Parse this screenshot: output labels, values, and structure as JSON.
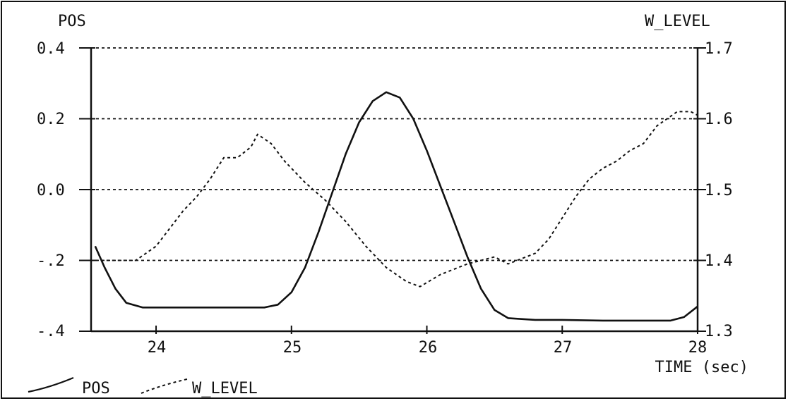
{
  "chart_data": {
    "type": "line",
    "left_axis": {
      "label": "POS",
      "ticks": [
        "0.4",
        "0.2",
        "0.0",
        "-.2",
        "-.4"
      ],
      "ylim": [
        -0.4,
        0.4
      ]
    },
    "right_axis": {
      "label": "W_LEVEL",
      "ticks": [
        "1.7",
        "1.6",
        "1.5",
        "1.4",
        "1.3"
      ],
      "ylim": [
        1.3,
        1.7
      ]
    },
    "x_axis": {
      "label": "TIME (sec)",
      "ticks": [
        "24",
        "25",
        "26",
        "27",
        "28"
      ],
      "xlim": [
        23.52,
        28
      ]
    },
    "grid": "horizontal dashed",
    "legend_position": "bottom-left",
    "series": [
      {
        "name": "POS",
        "axis": "left",
        "style": "solid",
        "points": [
          [
            23.55,
            -0.16
          ],
          [
            23.62,
            -0.22
          ],
          [
            23.7,
            -0.28
          ],
          [
            23.78,
            -0.32
          ],
          [
            23.9,
            -0.333
          ],
          [
            24.2,
            -0.333
          ],
          [
            24.5,
            -0.333
          ],
          [
            24.8,
            -0.333
          ],
          [
            24.9,
            -0.325
          ],
          [
            25.0,
            -0.29
          ],
          [
            25.1,
            -0.22
          ],
          [
            25.2,
            -0.12
          ],
          [
            25.3,
            -0.01
          ],
          [
            25.4,
            0.1
          ],
          [
            25.5,
            0.19
          ],
          [
            25.6,
            0.25
          ],
          [
            25.7,
            0.275
          ],
          [
            25.8,
            0.26
          ],
          [
            25.9,
            0.2
          ],
          [
            26.0,
            0.11
          ],
          [
            26.1,
            0.01
          ],
          [
            26.2,
            -0.09
          ],
          [
            26.3,
            -0.19
          ],
          [
            26.4,
            -0.28
          ],
          [
            26.5,
            -0.34
          ],
          [
            26.6,
            -0.363
          ],
          [
            26.8,
            -0.368
          ],
          [
            27.0,
            -0.368
          ],
          [
            27.3,
            -0.37
          ],
          [
            27.6,
            -0.37
          ],
          [
            27.8,
            -0.37
          ],
          [
            27.9,
            -0.36
          ],
          [
            28.0,
            -0.33
          ]
        ]
      },
      {
        "name": "W_LEVEL",
        "axis": "right",
        "style": "dashed",
        "points": [
          [
            23.55,
            1.4
          ],
          [
            23.7,
            1.4
          ],
          [
            23.85,
            1.4
          ],
          [
            24.0,
            1.42
          ],
          [
            24.1,
            1.445
          ],
          [
            24.2,
            1.47
          ],
          [
            24.3,
            1.49
          ],
          [
            24.4,
            1.515
          ],
          [
            24.5,
            1.545
          ],
          [
            24.6,
            1.545
          ],
          [
            24.7,
            1.56
          ],
          [
            24.75,
            1.578
          ],
          [
            24.85,
            1.565
          ],
          [
            24.95,
            1.54
          ],
          [
            25.1,
            1.51
          ],
          [
            25.25,
            1.485
          ],
          [
            25.4,
            1.455
          ],
          [
            25.55,
            1.42
          ],
          [
            25.7,
            1.39
          ],
          [
            25.85,
            1.37
          ],
          [
            25.95,
            1.363
          ],
          [
            26.1,
            1.38
          ],
          [
            26.3,
            1.395
          ],
          [
            26.5,
            1.405
          ],
          [
            26.6,
            1.395
          ],
          [
            26.8,
            1.41
          ],
          [
            26.9,
            1.43
          ],
          [
            27.0,
            1.46
          ],
          [
            27.1,
            1.49
          ],
          [
            27.2,
            1.515
          ],
          [
            27.3,
            1.53
          ],
          [
            27.4,
            1.54
          ],
          [
            27.5,
            1.555
          ],
          [
            27.6,
            1.565
          ],
          [
            27.7,
            1.59
          ],
          [
            27.85,
            1.61
          ],
          [
            27.95,
            1.61
          ],
          [
            28.0,
            1.605
          ]
        ]
      }
    ]
  }
}
